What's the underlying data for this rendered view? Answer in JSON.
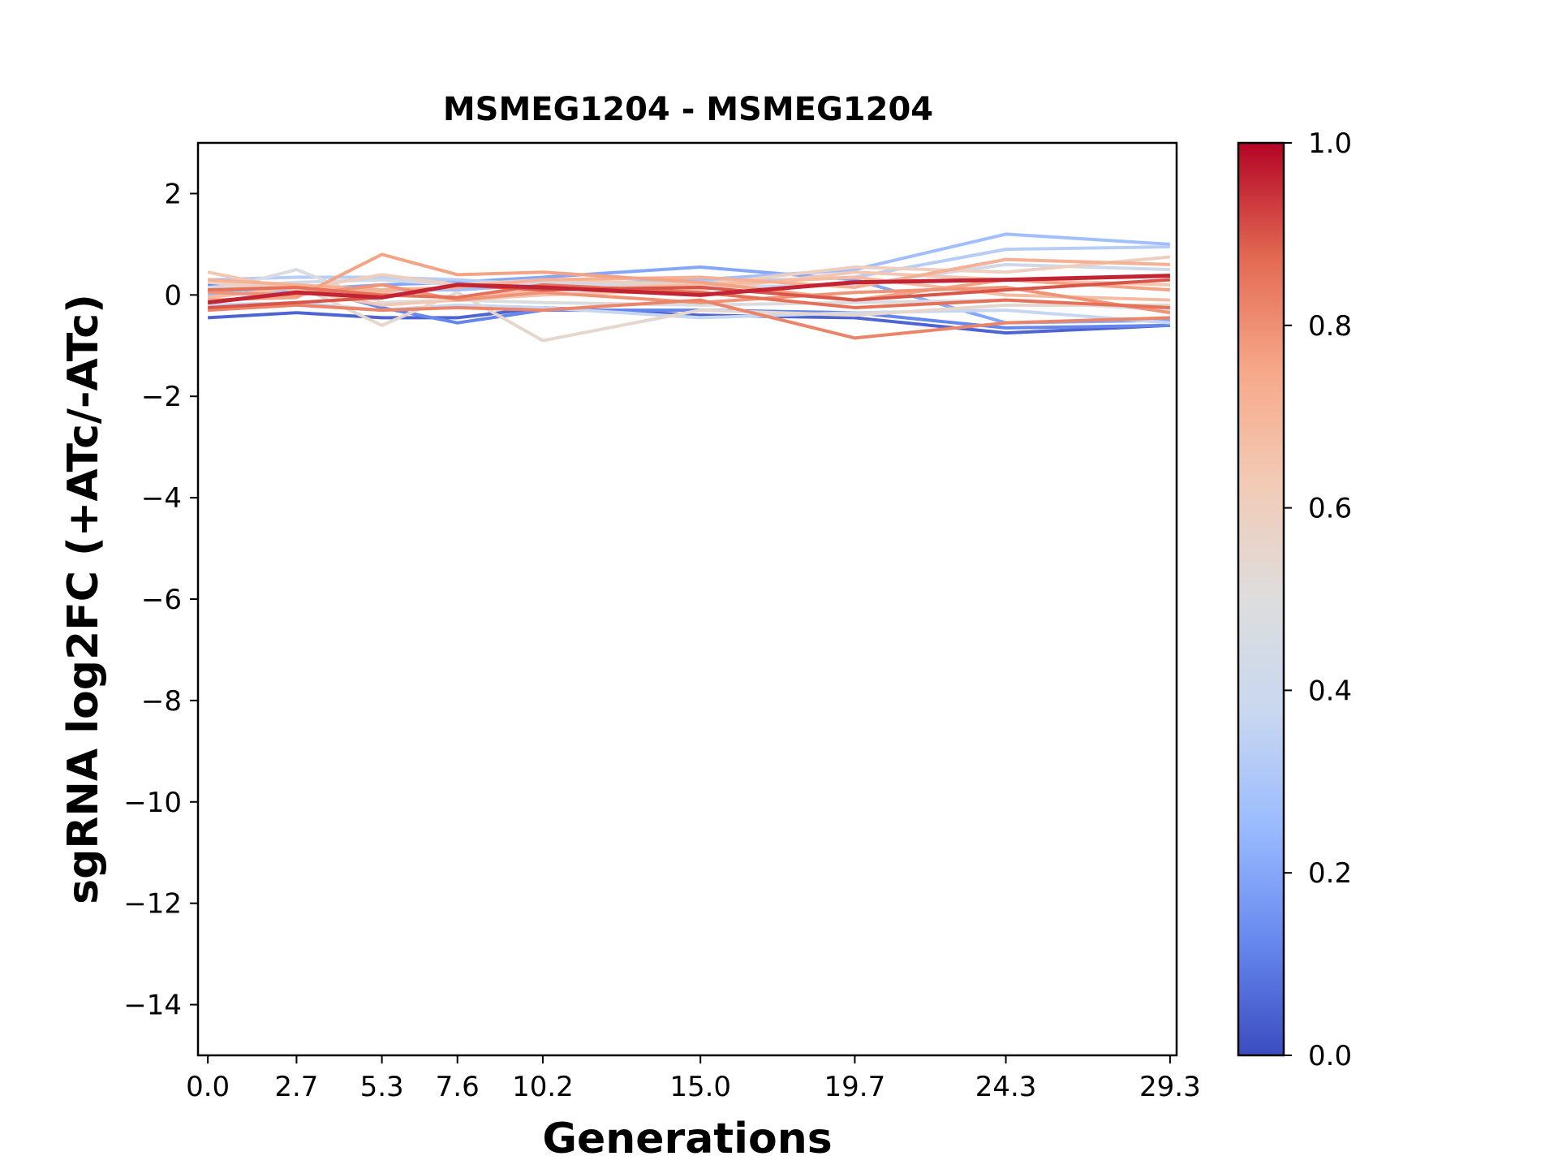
{
  "chart_data": {
    "type": "line",
    "title": "MSMEG1204 - MSMEG1204",
    "xlabel": "Generations",
    "ylabel": "sgRNA log2FC (+ATc/-ATc)",
    "x": [
      0.0,
      2.7,
      5.3,
      7.6,
      10.2,
      15.0,
      19.7,
      24.3,
      29.3
    ],
    "x_tick_labels": [
      "0.0",
      "2.7",
      "5.3",
      "7.6",
      "10.2",
      "15.0",
      "19.7",
      "24.3",
      "29.3"
    ],
    "xlim": [
      -0.3,
      29.5
    ],
    "ylim": [
      -15,
      3
    ],
    "y_ticks": [
      2,
      0,
      -2,
      -4,
      -6,
      -8,
      -10,
      -12,
      -14
    ],
    "y_tick_labels": [
      "2",
      "0",
      "−2",
      "−4",
      "−6",
      "−8",
      "−10",
      "−12",
      "−14"
    ],
    "grid": false,
    "colorbar": {
      "colormap": "coolwarm",
      "range": [
        0.0,
        1.0
      ],
      "ticks": [
        0.0,
        0.2,
        0.4,
        0.6,
        0.8,
        1.0
      ],
      "tick_labels": [
        "0.0",
        "0.2",
        "0.4",
        "0.6",
        "0.8",
        "1.0"
      ],
      "stops": [
        "#3b4cc0",
        "#6788ee",
        "#9abbff",
        "#c9d7f0",
        "#dddddd",
        "#f2cbb7",
        "#f7a889",
        "#e26952",
        "#b40426"
      ]
    },
    "series": [
      {
        "score": 0.05,
        "values": [
          -0.45,
          -0.35,
          -0.45,
          -0.45,
          -0.25,
          -0.4,
          -0.45,
          -0.75,
          -0.6
        ]
      },
      {
        "score": 0.12,
        "values": [
          0.2,
          0.2,
          -0.25,
          -0.55,
          -0.3,
          -0.3,
          -0.35,
          -0.65,
          -0.6
        ]
      },
      {
        "score": 0.2,
        "values": [
          0.1,
          0.1,
          0.2,
          0.25,
          0.35,
          0.55,
          0.3,
          -0.55,
          -0.5
        ]
      },
      {
        "score": 0.27,
        "values": [
          0.0,
          0.05,
          0.1,
          0.1,
          0.2,
          0.3,
          0.5,
          1.2,
          1.0
        ]
      },
      {
        "score": 0.33,
        "values": [
          0.3,
          0.35,
          0.35,
          0.3,
          0.2,
          0.25,
          0.35,
          0.9,
          0.95
        ]
      },
      {
        "score": 0.37,
        "values": [
          -0.2,
          -0.15,
          -0.3,
          -0.2,
          -0.25,
          -0.45,
          -0.35,
          -0.3,
          -0.55
        ]
      },
      {
        "score": 0.42,
        "values": [
          0.15,
          0.25,
          0.3,
          0.2,
          0.25,
          0.15,
          0.2,
          0.6,
          0.5
        ]
      },
      {
        "score": 0.48,
        "values": [
          0.05,
          0.5,
          -0.15,
          -0.1,
          -0.15,
          -0.2,
          -0.15,
          -0.1,
          -0.3
        ]
      },
      {
        "score": 0.55,
        "values": [
          0.1,
          0.2,
          -0.6,
          0.05,
          -0.9,
          -0.3,
          -0.4,
          -0.2,
          -0.2
        ]
      },
      {
        "score": 0.6,
        "values": [
          0.25,
          0.1,
          0.4,
          0.2,
          0.3,
          0.2,
          0.55,
          0.45,
          0.75
        ]
      },
      {
        "score": 0.64,
        "values": [
          0.45,
          0.1,
          -0.2,
          -0.1,
          0.0,
          0.1,
          0.45,
          0.3,
          0.2
        ]
      },
      {
        "score": 0.68,
        "values": [
          -0.05,
          0.15,
          0.05,
          -0.05,
          0.1,
          0.2,
          0.35,
          0.0,
          -0.1
        ]
      },
      {
        "score": 0.72,
        "values": [
          0.3,
          0.2,
          0.1,
          0.15,
          0.3,
          0.35,
          0.15,
          0.7,
          0.6
        ]
      },
      {
        "score": 0.76,
        "values": [
          -0.1,
          -0.05,
          0.8,
          0.4,
          0.45,
          0.25,
          -0.1,
          0.3,
          0.1
        ]
      },
      {
        "score": 0.79,
        "values": [
          0.05,
          0.0,
          0.2,
          -0.1,
          0.05,
          -0.15,
          0.05,
          0.15,
          -0.35
        ]
      },
      {
        "score": 0.82,
        "values": [
          -0.3,
          -0.2,
          -0.3,
          -0.25,
          -0.3,
          -0.1,
          -0.85,
          -0.55,
          -0.45
        ]
      },
      {
        "score": 0.86,
        "values": [
          0.1,
          0.15,
          0.0,
          -0.05,
          0.2,
          0.05,
          -0.25,
          -0.1,
          -0.25
        ]
      },
      {
        "score": 0.9,
        "values": [
          -0.25,
          -0.15,
          -0.05,
          0.2,
          0.1,
          0.15,
          -0.1,
          0.1,
          0.3
        ]
      },
      {
        "score": 0.96,
        "values": [
          -0.15,
          0.05,
          -0.05,
          0.2,
          0.15,
          0.0,
          0.25,
          0.3,
          0.38
        ]
      }
    ]
  }
}
